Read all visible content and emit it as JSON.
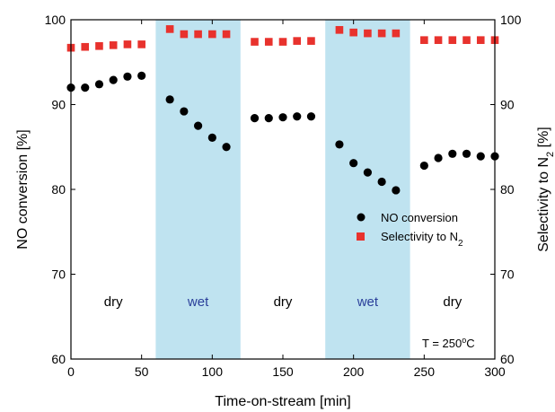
{
  "chart_data": {
    "type": "scatter",
    "xlabel": "Time-on-stream [min]",
    "ylabel": "NO conversion [%]",
    "y2label_prefix": "Selectivity to N",
    "y2label_sub": "2",
    "y2label_suffix": " [%]",
    "xlim": [
      0,
      300
    ],
    "ylim": [
      60,
      100
    ],
    "y2lim": [
      60,
      100
    ],
    "xticks": [
      0,
      50,
      100,
      150,
      200,
      250,
      300
    ],
    "yticks": [
      60,
      70,
      80,
      90,
      100
    ],
    "y2ticks": [
      60,
      70,
      80,
      90,
      100
    ],
    "regions": [
      {
        "label": "dry",
        "x_range": [
          0,
          60
        ],
        "shaded": false,
        "label_color": "#000000"
      },
      {
        "label": "wet",
        "x_range": [
          60,
          120
        ],
        "shaded": true,
        "label_color": "#2a3f9a"
      },
      {
        "label": "dry",
        "x_range": [
          120,
          180
        ],
        "shaded": false,
        "label_color": "#000000"
      },
      {
        "label": "wet",
        "x_range": [
          180,
          240
        ],
        "shaded": true,
        "label_color": "#2a3f9a"
      },
      {
        "label": "dry",
        "x_range": [
          240,
          300
        ],
        "shaded": false,
        "label_color": "#000000"
      }
    ],
    "series": [
      {
        "name": "NO conversion",
        "axis": "left",
        "marker": "circle",
        "color": "#000000",
        "points": [
          [
            0,
            92.0
          ],
          [
            10,
            92.0
          ],
          [
            20,
            92.4
          ],
          [
            30,
            92.9
          ],
          [
            40,
            93.3
          ],
          [
            50,
            93.4
          ],
          [
            70,
            90.6
          ],
          [
            80,
            89.2
          ],
          [
            90,
            87.5
          ],
          [
            100,
            86.1
          ],
          [
            110,
            85.0
          ],
          [
            130,
            88.4
          ],
          [
            140,
            88.4
          ],
          [
            150,
            88.5
          ],
          [
            160,
            88.6
          ],
          [
            170,
            88.6
          ],
          [
            190,
            85.3
          ],
          [
            200,
            83.1
          ],
          [
            210,
            82.0
          ],
          [
            220,
            80.9
          ],
          [
            230,
            79.9
          ],
          [
            250,
            82.8
          ],
          [
            260,
            83.7
          ],
          [
            270,
            84.2
          ],
          [
            280,
            84.2
          ],
          [
            290,
            83.9
          ],
          [
            300,
            83.9
          ]
        ]
      },
      {
        "name_prefix": "Selectivity to N",
        "name_sub": "2",
        "axis": "right",
        "marker": "square",
        "color": "#e8322d",
        "points": [
          [
            0,
            96.7
          ],
          [
            10,
            96.8
          ],
          [
            20,
            96.9
          ],
          [
            30,
            97.0
          ],
          [
            40,
            97.1
          ],
          [
            50,
            97.1
          ],
          [
            70,
            98.9
          ],
          [
            80,
            98.3
          ],
          [
            90,
            98.3
          ],
          [
            100,
            98.3
          ],
          [
            110,
            98.3
          ],
          [
            130,
            97.4
          ],
          [
            140,
            97.4
          ],
          [
            150,
            97.4
          ],
          [
            160,
            97.5
          ],
          [
            170,
            97.5
          ],
          [
            190,
            98.8
          ],
          [
            200,
            98.5
          ],
          [
            210,
            98.4
          ],
          [
            220,
            98.4
          ],
          [
            230,
            98.4
          ],
          [
            250,
            97.6
          ],
          [
            260,
            97.6
          ],
          [
            270,
            97.6
          ],
          [
            280,
            97.6
          ],
          [
            290,
            97.6
          ],
          [
            300,
            97.6
          ]
        ]
      }
    ],
    "annotation_prefix": "T = 250",
    "annotation_sup": "o",
    "annotation_suffix": "C",
    "colors": {
      "shade": "#bfe3f0",
      "axis": "#000000"
    }
  }
}
